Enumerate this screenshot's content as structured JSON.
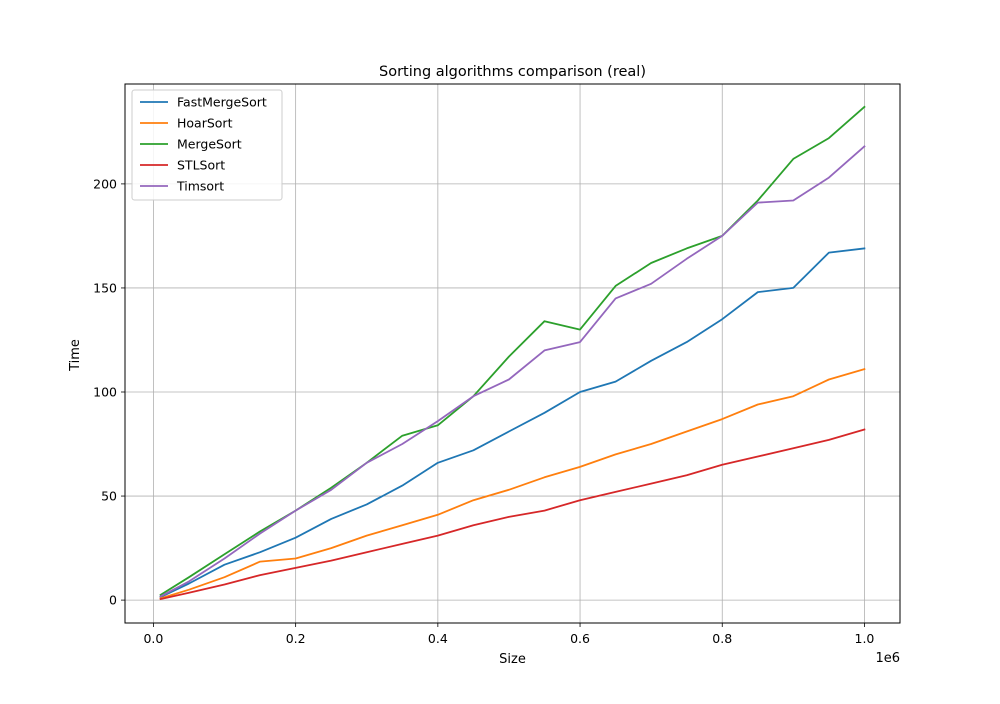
{
  "chart_data": {
    "type": "line",
    "title": "Sorting algorithms comparison (real)",
    "xlabel": "Size",
    "ylabel": "Time",
    "x_offset_text": "1e6",
    "xlim": [
      -0.04,
      1.05
    ],
    "ylim": [
      -11,
      248
    ],
    "xticks": [
      0.0,
      0.2,
      0.4,
      0.6,
      0.8,
      1.0
    ],
    "xtick_labels": [
      "0.0",
      "0.2",
      "0.4",
      "0.6",
      "0.8",
      "1.0"
    ],
    "yticks": [
      0,
      50,
      100,
      150,
      200
    ],
    "ytick_labels": [
      "0",
      "50",
      "100",
      "150",
      "200"
    ],
    "grid": true,
    "legend_position": "top-left",
    "x": [
      0.01,
      0.05,
      0.1,
      0.15,
      0.2,
      0.25,
      0.3,
      0.35,
      0.4,
      0.45,
      0.5,
      0.55,
      0.6,
      0.65,
      0.7,
      0.75,
      0.8,
      0.85,
      0.9,
      0.95,
      1.0
    ],
    "series": [
      {
        "name": "FastMergeSort",
        "color": "#1f77b4",
        "values": [
          1.5,
          8,
          17,
          23,
          30,
          39,
          46,
          55,
          66,
          72,
          81,
          90,
          100,
          105,
          115,
          124,
          135,
          148,
          150,
          167,
          169
        ]
      },
      {
        "name": "HoarSort",
        "color": "#ff7f0e",
        "values": [
          0.8,
          5,
          11,
          18.5,
          20,
          25,
          31,
          36,
          41,
          48,
          53,
          59,
          64,
          70,
          75,
          81,
          87,
          94,
          98,
          106,
          111
        ]
      },
      {
        "name": "MergeSort",
        "color": "#2ca02c",
        "values": [
          2.5,
          11,
          22,
          33,
          43,
          54,
          66,
          79,
          84,
          98,
          117,
          134,
          130,
          151,
          162,
          169,
          175,
          192,
          212,
          222,
          237
        ]
      },
      {
        "name": "STLSort",
        "color": "#d62728",
        "values": [
          0.5,
          3.5,
          7.5,
          12,
          15.5,
          19,
          23,
          27,
          31,
          36,
          40,
          43,
          48,
          52,
          56,
          60,
          65,
          69,
          73,
          77,
          82
        ]
      },
      {
        "name": "Timsort",
        "color": "#9467bd",
        "values": [
          1.8,
          9,
          20,
          32,
          43,
          53,
          66,
          75,
          86,
          98,
          106,
          120,
          124,
          145,
          152,
          164,
          175,
          191,
          192,
          203,
          218
        ]
      }
    ]
  }
}
